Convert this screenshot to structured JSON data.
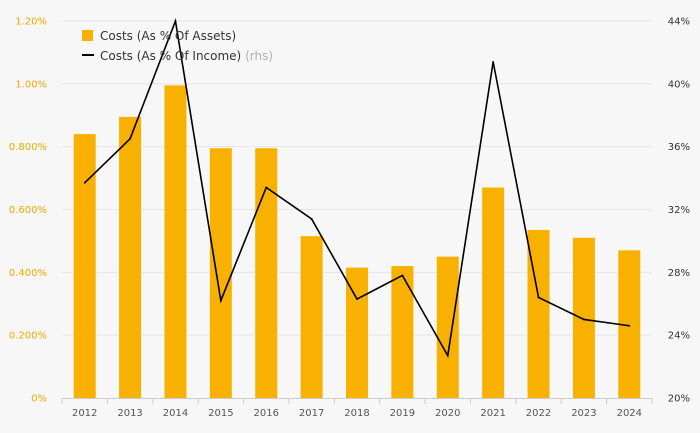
{
  "chart_data": {
    "type": "bar",
    "categories": [
      "2012",
      "2013",
      "2014",
      "2015",
      "2016",
      "2017",
      "2018",
      "2019",
      "2020",
      "2021",
      "2022",
      "2023",
      "2024"
    ],
    "series": [
      {
        "name": "Costs (As % Of Assets)",
        "type": "bar",
        "axis": "left",
        "color": "#f8b100",
        "values": [
          0.84,
          0.895,
          0.995,
          0.795,
          0.795,
          0.515,
          0.415,
          0.42,
          0.45,
          0.67,
          0.535,
          0.51,
          0.47
        ]
      },
      {
        "name": "Costs (As % Of Income)",
        "type": "line",
        "axis": "right",
        "color": "#000000",
        "values": [
          33.7,
          36.5,
          44.0,
          26.2,
          33.4,
          31.4,
          26.3,
          27.8,
          22.7,
          41.4,
          26.4,
          25.0,
          24.6
        ]
      }
    ],
    "legend": [
      {
        "label": "Costs (As % Of Assets)",
        "note": ""
      },
      {
        "label": "Costs (As % Of Income)",
        "note": "(rhs)"
      }
    ],
    "left_axis": {
      "ylim": [
        0,
        1.2
      ],
      "ticks": [
        0,
        0.2,
        0.4,
        0.6,
        0.8,
        1.0,
        1.2
      ],
      "tick_labels": [
        "0%",
        "0.200%",
        "0.400%",
        "0.600%",
        "0.800%",
        "1.00%",
        "1.20%"
      ],
      "color": "#f5a800"
    },
    "right_axis": {
      "ylim": [
        20,
        44
      ],
      "ticks": [
        20,
        24,
        28,
        32,
        36,
        40,
        44
      ],
      "tick_labels": [
        "20%",
        "24%",
        "28%",
        "32%",
        "36%",
        "40%",
        "44%"
      ],
      "color": "#333333"
    },
    "grid": true,
    "legend_position": "top-left"
  }
}
